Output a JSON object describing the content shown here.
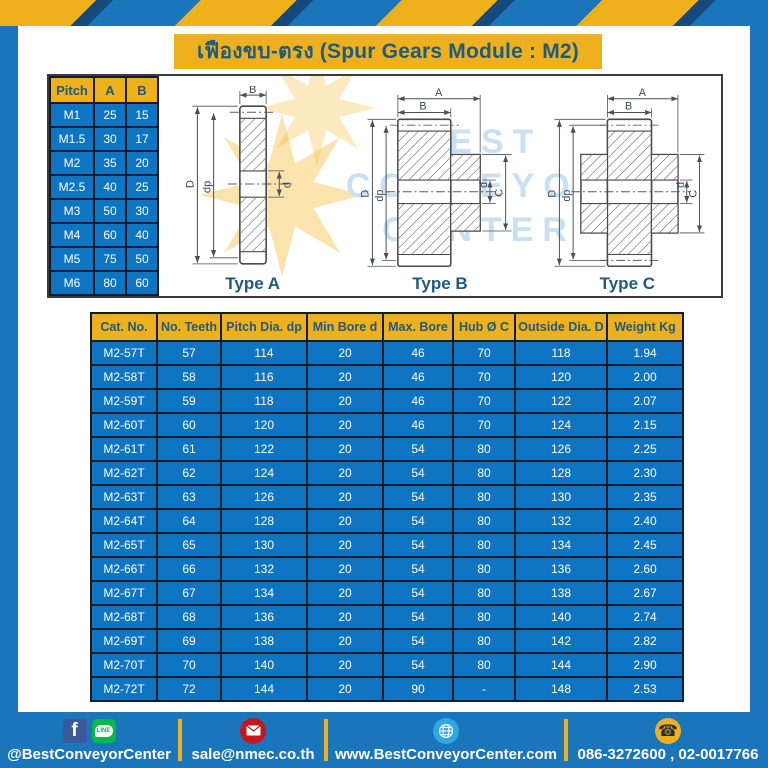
{
  "title": "เฟืองขบ-ตรง (Spur Gears Module : M2)",
  "pitch_table": {
    "headers": [
      "Pitch",
      "A",
      "B"
    ],
    "rows": [
      [
        "M1",
        "25",
        "15"
      ],
      [
        "M1.5",
        "30",
        "17"
      ],
      [
        "M2",
        "35",
        "20"
      ],
      [
        "M2.5",
        "40",
        "25"
      ],
      [
        "M3",
        "50",
        "30"
      ],
      [
        "M4",
        "60",
        "40"
      ],
      [
        "M5",
        "75",
        "50"
      ],
      [
        "M6",
        "80",
        "60"
      ]
    ]
  },
  "drawings": {
    "watermark_lines": [
      "BEST",
      "CONVEYOR",
      "CENTER"
    ],
    "types": [
      {
        "label": "Type A"
      },
      {
        "label": "Type B"
      },
      {
        "label": "Type C"
      }
    ],
    "dims": {
      "A": "A",
      "B": "B",
      "D": "D",
      "dp": "dp",
      "d": "d",
      "C": "C"
    }
  },
  "main_table": {
    "headers": [
      "Cat. No.",
      "No. Teeth",
      "Pitch Dia. dp",
      "Min Bore d",
      "Max. Bore",
      "Hub Ø C",
      "Outside Dia. D",
      "Weight Kg"
    ],
    "rows": [
      [
        "M2-57T",
        "57",
        "114",
        "20",
        "46",
        "70",
        "118",
        "1.94"
      ],
      [
        "M2-58T",
        "58",
        "116",
        "20",
        "46",
        "70",
        "120",
        "2.00"
      ],
      [
        "M2-59T",
        "59",
        "118",
        "20",
        "46",
        "70",
        "122",
        "2.07"
      ],
      [
        "M2-60T",
        "60",
        "120",
        "20",
        "46",
        "70",
        "124",
        "2.15"
      ],
      [
        "M2-61T",
        "61",
        "122",
        "20",
        "54",
        "80",
        "126",
        "2.25"
      ],
      [
        "M2-62T",
        "62",
        "124",
        "20",
        "54",
        "80",
        "128",
        "2.30"
      ],
      [
        "M2-63T",
        "63",
        "126",
        "20",
        "54",
        "80",
        "130",
        "2.35"
      ],
      [
        "M2-64T",
        "64",
        "128",
        "20",
        "54",
        "80",
        "132",
        "2.40"
      ],
      [
        "M2-65T",
        "65",
        "130",
        "20",
        "54",
        "80",
        "134",
        "2.45"
      ],
      [
        "M2-66T",
        "66",
        "132",
        "20",
        "54",
        "80",
        "136",
        "2.60"
      ],
      [
        "M2-67T",
        "67",
        "134",
        "20",
        "54",
        "80",
        "138",
        "2.67"
      ],
      [
        "M2-68T",
        "68",
        "136",
        "20",
        "54",
        "80",
        "140",
        "2.74"
      ],
      [
        "M2-69T",
        "69",
        "138",
        "20",
        "54",
        "80",
        "142",
        "2.82"
      ],
      [
        "M2-70T",
        "70",
        "140",
        "20",
        "54",
        "80",
        "144",
        "2.90"
      ],
      [
        "M2-72T",
        "72",
        "144",
        "20",
        "90",
        "-",
        "148",
        "2.53"
      ]
    ]
  },
  "footer": {
    "social_handle": "@BestConveyorCenter",
    "email": "sale@nmec.co.th",
    "website": "www.BestConveyorCenter.com",
    "phone": "086-3272600 , 02-0017766",
    "icons": {
      "facebook_glyph": "f",
      "line_glyph": "LINE",
      "phone_glyph": "☎"
    }
  },
  "colors": {
    "frame_blue": "#1b75bb",
    "accent_yellow": "#efb01d",
    "stripe_shadow": "#16497e",
    "cell_blue": "#0f74c2",
    "header_text_blue": "#1e5b7d",
    "table_border": "#151c26",
    "type_label_blue": "#1d5b80",
    "watermark_blue": "#c9dff2",
    "facebook_blue": "#3b5998",
    "line_green": "#06b948",
    "email_red": "#c4161c",
    "globe_blue": "#2fa9e1"
  }
}
